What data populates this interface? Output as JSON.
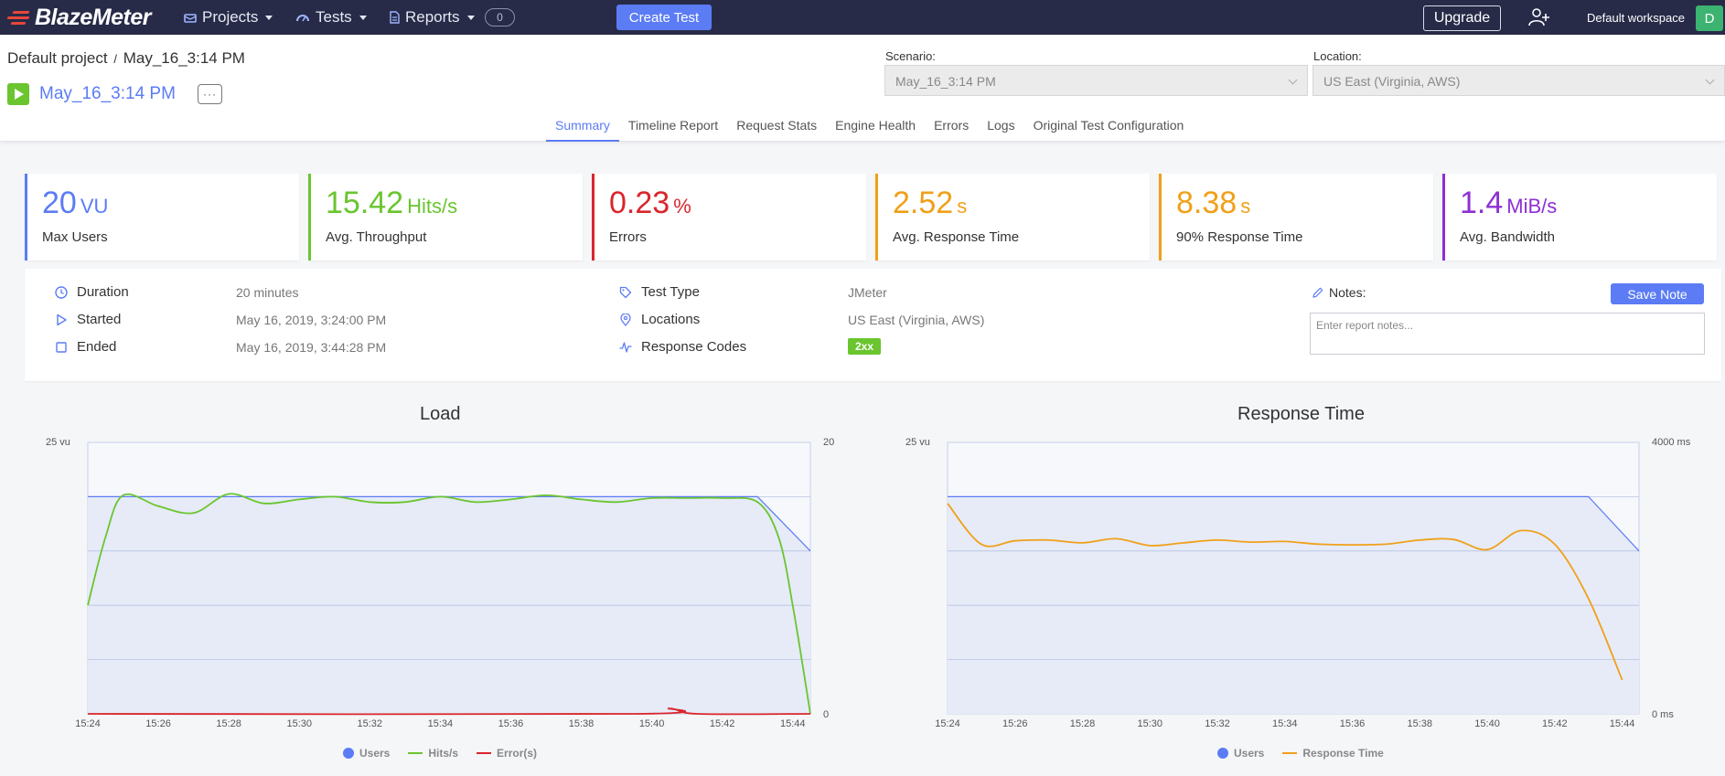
{
  "brand": {
    "name": "BlazeMeter"
  },
  "nav": {
    "items": [
      {
        "label": "Projects",
        "icon": "box-icon"
      },
      {
        "label": "Tests",
        "icon": "gauge-icon"
      },
      {
        "label": "Reports",
        "icon": "document-icon"
      }
    ],
    "badge": "0",
    "create_test": "Create Test",
    "upgrade": "Upgrade",
    "workspace": "Default workspace",
    "avatar_initial": "D"
  },
  "header": {
    "project": "Default project",
    "separator": "/",
    "report": "May_16_3:14 PM",
    "test_name": "May_16_3:14 PM",
    "more": "···",
    "scenario_label": "Scenario:",
    "scenario_value": "May_16_3:14 PM",
    "location_label": "Location:",
    "location_value": "US East (Virginia, AWS)"
  },
  "tabs": [
    {
      "label": "Summary",
      "active": true
    },
    {
      "label": "Timeline Report",
      "active": false
    },
    {
      "label": "Request Stats",
      "active": false
    },
    {
      "label": "Engine Health",
      "active": false
    },
    {
      "label": "Errors",
      "active": false
    },
    {
      "label": "Logs",
      "active": false
    },
    {
      "label": "Original Test Configuration",
      "active": false
    }
  ],
  "kpis": [
    {
      "value": "20",
      "unit": "VU",
      "label": "Max Users",
      "color": "#5b7cf5"
    },
    {
      "value": "15.42",
      "unit": "Hits/s",
      "label": "Avg. Throughput",
      "color": "#6ac52f"
    },
    {
      "value": "0.23",
      "unit": "%",
      "label": "Errors",
      "color": "#d9262c"
    },
    {
      "value": "2.52",
      "unit": "s",
      "label": "Avg. Response Time",
      "color": "#f0a019"
    },
    {
      "value": "8.38",
      "unit": "s",
      "label": "90% Response Time",
      "color": "#f0a019"
    },
    {
      "value": "1.4",
      "unit": "MiB/s",
      "label": "Avg. Bandwidth",
      "color": "#8e2fd4"
    }
  ],
  "info": {
    "duration_label": "Duration",
    "duration": "20 minutes",
    "started_label": "Started",
    "started": "May 16, 2019, 3:24:00 PM",
    "ended_label": "Ended",
    "ended": "May 16, 2019, 3:44:28 PM",
    "test_type_label": "Test Type",
    "test_type": "JMeter",
    "locations_label": "Locations",
    "locations": "US East (Virginia, AWS)",
    "response_codes_label": "Response Codes",
    "response_code": "2xx",
    "notes_label": "Notes:",
    "save_note": "Save Note",
    "notes_placeholder": "Enter report notes..."
  },
  "chart_data": [
    {
      "type": "line",
      "title": "Load",
      "x": [
        "15:24",
        "15:26",
        "15:28",
        "15:30",
        "15:32",
        "15:34",
        "15:36",
        "15:38",
        "15:40",
        "15:42",
        "15:44"
      ],
      "xlim": [
        0,
        20.5
      ],
      "y_left_label": "25 vu",
      "y_left_lim": [
        0,
        25
      ],
      "y_right_lim": [
        0,
        20
      ],
      "y_right_ticks": [
        "20",
        "0"
      ],
      "grid": true,
      "legend_position": "bottom",
      "series": [
        {
          "name": "Users",
          "axis": "left",
          "color": "#5b7cf5",
          "points": [
            [
              0,
              20
            ],
            [
              19,
              20
            ],
            [
              20.5,
              15
            ]
          ]
        },
        {
          "name": "Hits/s",
          "axis": "right",
          "color": "#6ac52f",
          "points": [
            [
              0,
              8
            ],
            [
              0.5,
              13
            ],
            [
              1,
              16.1
            ],
            [
              2,
              15.3
            ],
            [
              3,
              14.8
            ],
            [
              4,
              16.2
            ],
            [
              5,
              15.5
            ],
            [
              6,
              15.8
            ],
            [
              7,
              16
            ],
            [
              8,
              15.6
            ],
            [
              9,
              15.6
            ],
            [
              10,
              16
            ],
            [
              11,
              15.6
            ],
            [
              12,
              15.8
            ],
            [
              13,
              16.1
            ],
            [
              14,
              15.8
            ],
            [
              15,
              15.6
            ],
            [
              16,
              15.9
            ],
            [
              17,
              15.9
            ],
            [
              18,
              15.9
            ],
            [
              19,
              15.6
            ],
            [
              19.6,
              13
            ],
            [
              20,
              8
            ],
            [
              20.5,
              0
            ]
          ]
        },
        {
          "name": "Error(s)",
          "axis": "right",
          "color": "#d9262c",
          "points": [
            [
              0,
              0
            ],
            [
              15.5,
              0
            ],
            [
              16.5,
              0.4
            ],
            [
              17.3,
              0
            ],
            [
              20.5,
              0
            ]
          ]
        }
      ]
    },
    {
      "type": "line",
      "title": "Response Time",
      "x": [
        "15:24",
        "15:26",
        "15:28",
        "15:30",
        "15:32",
        "15:34",
        "15:36",
        "15:38",
        "15:40",
        "15:42",
        "15:44"
      ],
      "xlim": [
        0,
        20.5
      ],
      "y_left_label": "25 vu",
      "y_left_lim": [
        0,
        25
      ],
      "y_right_lim": [
        0,
        4000
      ],
      "y_right_ticks": [
        "4000 ms",
        "0 ms"
      ],
      "grid": true,
      "legend_position": "bottom",
      "series": [
        {
          "name": "Users",
          "axis": "left",
          "color": "#5b7cf5",
          "points": [
            [
              0,
              20
            ],
            [
              19,
              20
            ],
            [
              20.5,
              15
            ]
          ]
        },
        {
          "name": "Response Time",
          "axis": "right",
          "color": "#f0a019",
          "points": [
            [
              0,
              3100
            ],
            [
              1,
              2500
            ],
            [
              2,
              2550
            ],
            [
              3,
              2560
            ],
            [
              4,
              2520
            ],
            [
              5,
              2580
            ],
            [
              6,
              2480
            ],
            [
              7,
              2520
            ],
            [
              8,
              2560
            ],
            [
              9,
              2530
            ],
            [
              10,
              2540
            ],
            [
              11,
              2500
            ],
            [
              12,
              2490
            ],
            [
              13,
              2500
            ],
            [
              14,
              2560
            ],
            [
              15,
              2570
            ],
            [
              16,
              2420
            ],
            [
              17,
              2700
            ],
            [
              18,
              2500
            ],
            [
              19,
              1700
            ],
            [
              20,
              500
            ]
          ]
        }
      ]
    }
  ]
}
